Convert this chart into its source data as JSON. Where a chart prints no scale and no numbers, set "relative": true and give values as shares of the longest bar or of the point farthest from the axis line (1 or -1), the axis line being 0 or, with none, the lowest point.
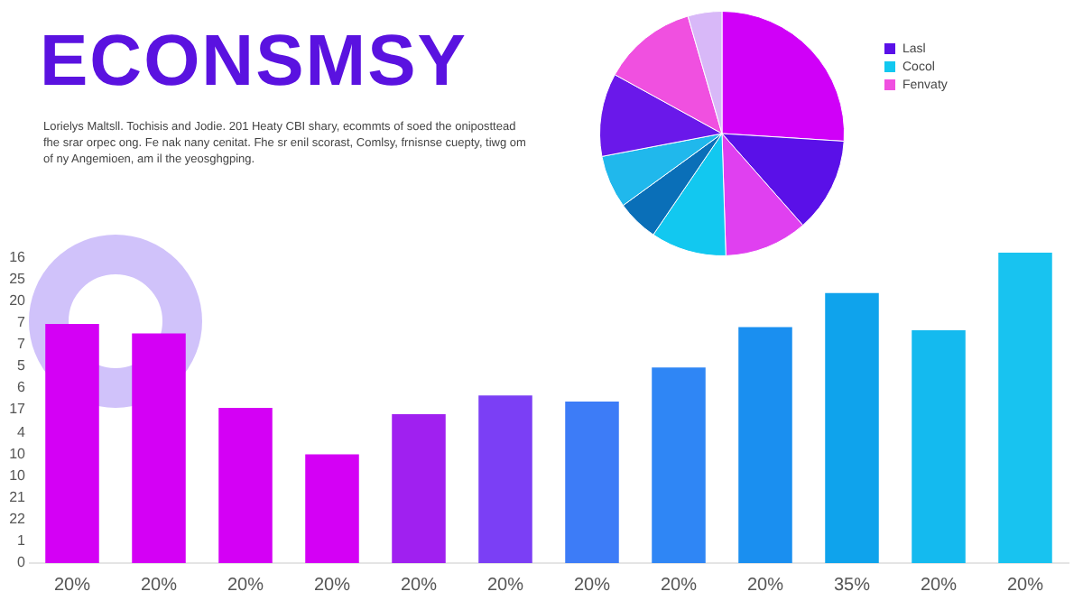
{
  "chart_data": [
    {
      "type": "bar",
      "title": "ECONSMSY",
      "subtitle": "Lorielys Maltsll. Tochisis and Jodie. 201 Heaty CBI shary, ecommts of soed the oniposttead fhe srar orpec ong. Fe nak nany cenitat. Fhe sr enil scorast, Comlsy, frnisnse cuepty, tiwg om of ny Angemioen, am il the yeosghgping.",
      "relative": true,
      "categories": [
        "20%",
        "20%",
        "20%",
        "20%",
        "20%",
        "20%",
        "20%",
        "20%",
        "20%",
        "35%",
        "20%",
        "20%"
      ],
      "values": [
        0.77,
        0.74,
        0.5,
        0.35,
        0.48,
        0.54,
        0.52,
        0.63,
        0.76,
        0.87,
        0.75,
        1
      ],
      "colors": [
        "#d400f5",
        "#d400f5",
        "#d400f5",
        "#d400f5",
        "#a020f0",
        "#7b3ff5",
        "#3d7cf7",
        "#2f86f5",
        "#1a8ff0",
        "#0fa3ec",
        "#14baef",
        "#18c3f0"
      ],
      "annotations": [
        "16",
        "25",
        "20",
        "7",
        "7",
        "5",
        "6",
        "17",
        "4",
        "10",
        "10",
        "21",
        "22",
        "1",
        "0"
      ],
      "grid": false,
      "legend": false
    },
    {
      "type": "pie",
      "categories": [
        null,
        "Lasl",
        null,
        "Cocol",
        null,
        null,
        null,
        "Fenvaty",
        null
      ],
      "values": [
        26,
        12.5,
        11,
        10,
        5.5,
        7,
        11,
        12.5,
        4.5
      ],
      "colors": [
        "#d000f8",
        "#5a10e8",
        "#e040f0",
        "#12c8f0",
        "#0a6fb8",
        "#20b8ec",
        "#6a18ea",
        "#f050e0",
        "#d8b8f8"
      ],
      "legend": "right"
    }
  ]
}
